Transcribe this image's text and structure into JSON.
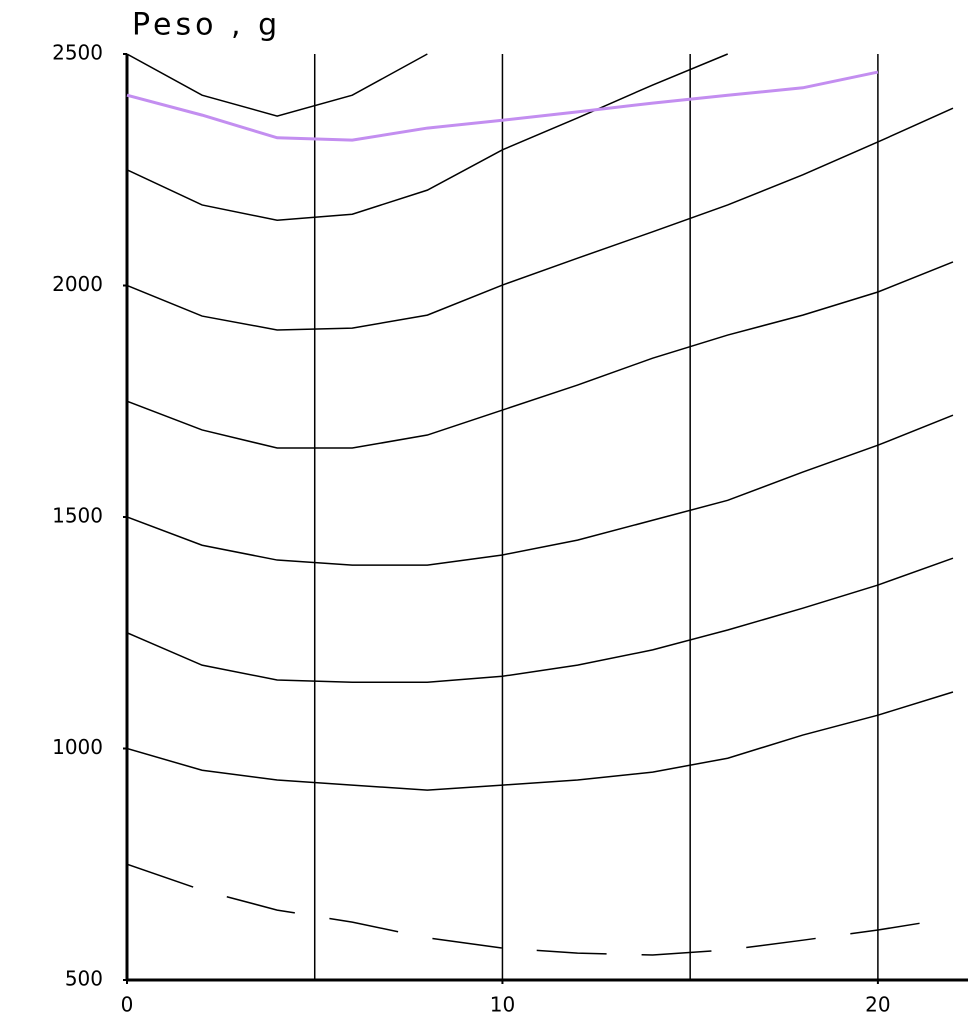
{
  "chart_data": {
    "type": "line",
    "title": "Peso , g",
    "x": [
      0,
      2,
      4,
      6,
      8,
      10,
      12,
      14,
      16,
      18,
      20,
      22
    ],
    "xlim": [
      0,
      22.4
    ],
    "xticks": [
      0,
      10,
      20
    ],
    "xgrid": [
      5,
      10,
      15,
      20
    ],
    "ylim": [
      500,
      2500
    ],
    "yticks": [
      500,
      1000,
      1500,
      2000,
      2500
    ],
    "series": [
      {
        "color": "#000000",
        "values": [
          2500,
          2411,
          2366,
          2411,
          2500,
          null,
          null,
          null,
          null,
          null,
          null,
          null
        ]
      },
      {
        "color": "#000000",
        "values": [
          2250,
          2174,
          2141,
          2154,
          2206,
          2293,
          2362,
          2433,
          2500,
          null,
          null,
          null
        ]
      },
      {
        "color": "#c38ef0",
        "values": [
          2411,
          2368,
          2319,
          2314,
          2340,
          2357,
          2375,
          2394,
          2411,
          2427,
          2461,
          null
        ]
      },
      {
        "color": "#000000",
        "values": [
          2000,
          1934,
          1904,
          1908,
          1936,
          2001,
          2059,
          2116,
          2174,
          2239,
          2310,
          2383
        ]
      },
      {
        "color": "#000000",
        "values": [
          1750,
          1688,
          1649,
          1649,
          1677,
          1731,
          1785,
          1843,
          1893,
          1936,
          1986,
          2051
        ]
      },
      {
        "color": "#000000",
        "values": [
          1500,
          1439,
          1407,
          1396,
          1396,
          1418,
          1450,
          1493,
          1536,
          1597,
          1655,
          1720
        ]
      },
      {
        "color": "#000000",
        "values": [
          1250,
          1180,
          1148,
          1143,
          1143,
          1156,
          1180,
          1213,
          1256,
          1303,
          1353,
          1411
        ]
      },
      {
        "color": "#000000",
        "values": [
          1000,
          953,
          932,
          921,
          910,
          921,
          932,
          949,
          979,
          1029,
          1072,
          1122
        ]
      },
      {
        "color": "#000000",
        "dashed": true,
        "values": [
          750,
          694,
          651,
          625,
          591,
          569,
          558,
          554,
          565,
          586,
          608,
          634
        ]
      }
    ]
  }
}
